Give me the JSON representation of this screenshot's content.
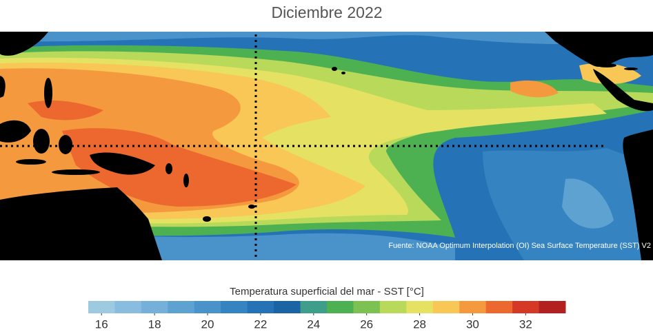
{
  "title": "Diciembre 2022",
  "source": "Fuente: NOAA Optimum Interpolation (OI) Sea Surface Temperature (SST) V2",
  "colorbar": {
    "label": "Temperatura superficial del mar - SST  [°C]",
    "range": [
      15.5,
      33.5
    ],
    "colors": [
      "#9ecae1",
      "#89bde0",
      "#74b0da",
      "#5ea2d2",
      "#4993ca",
      "#3584c1",
      "#2573b6",
      "#1a63a4",
      "#3f9e8a",
      "#4db152",
      "#7cc152",
      "#b9d95b",
      "#e5e263",
      "#f8c755",
      "#f5993e",
      "#ec682e",
      "#d63826",
      "#b3201f"
    ],
    "ticks": [
      16,
      18,
      20,
      22,
      24,
      26,
      28,
      30,
      32
    ]
  }
}
